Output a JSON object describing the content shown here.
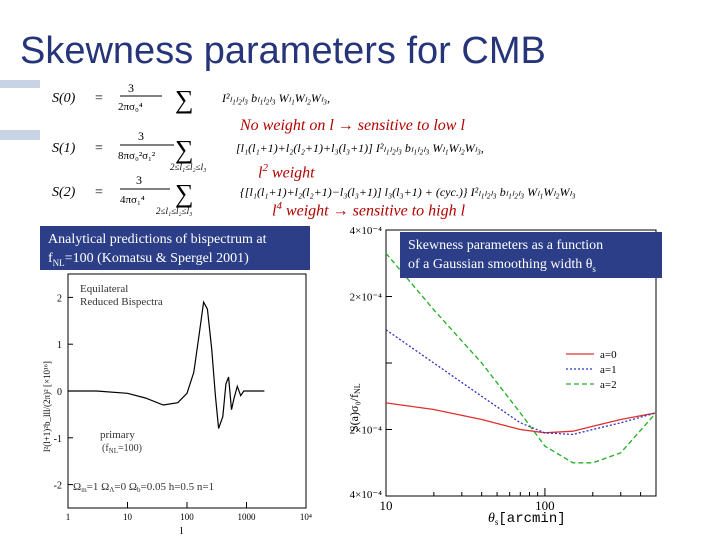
{
  "slide": {
    "title": "Skewness parameters for CMB",
    "colors": {
      "title": "#26357a",
      "annotation": "#b40000",
      "caption_bg": "#2b3e87",
      "a0": "#e03030",
      "a1": "#3030c0",
      "a2": "#20b020"
    }
  },
  "equations": {
    "s0_lhs": "S(0)",
    "s1_lhs": "S(1)",
    "s2_lhs": "S(2)",
    "eq": "=",
    "s0_num": "3",
    "s0_den": "2πσ₀⁴",
    "s1_num": "3",
    "s1_den": "8πσ₀²σ₁²",
    "s2_num": "3",
    "s2_den": "4πσ₁⁴",
    "sum_range": "2≤l₁≤l₂≤l₃",
    "s0_body": "I²ₗ₁ₗ₂ₗ₃ bₗ₁ₗ₂ₗ₃ Wₗ₁Wₗ₂Wₗ₃,",
    "s1_body": "[l₁(l₁+1)+l₂(l₂+1)+l₃(l₃+1)] I²ₗ₁ₗ₂ₗ₃ bₗ₁ₗ₂ₗ₃ Wₗ₁Wₗ₂Wₗ₃,",
    "s2_body": "{[l₁(l₁+1)+l₂(l₂+1)−l₃(l₃+1)] l₃(l₃+1) + (cyc.)} I²ₗ₁ₗ₂ₗ₃ bₗ₁ₗ₂ₗ₃ Wₗ₁Wₗ₂Wₗ₃"
  },
  "annotations": {
    "a1": "No weight on l → sensitive to low l",
    "a2_pre": "l",
    "a2_sup": "2",
    "a2_post": " weight",
    "a3_pre": "l",
    "a3_sup": "4",
    "a3_post": " weight → sensitive to high l"
  },
  "captions": {
    "left_line1": "Analytical predictions of bispectrum at",
    "left_line2": "f",
    "left_sub": "NL",
    "left_line2_rest": "=100 (Komatsu & Spergel 2001)",
    "right_line1": "Skewness parameters as a function",
    "right_line2": "of a Gaussian smoothing width θ",
    "right_sub": "s"
  },
  "left_plot": {
    "legend_line1": "Equilateral",
    "legend_line2": "Reduced Bispectra",
    "curve_label_1": "primary",
    "curve_label_2": "(f",
    "curve_label_2_sub": "NL",
    "curve_label_2_rest": "=100)",
    "ylabel": "l²(l+1)²b_lll/(2π)² [×10¹⁶]",
    "xlabel": "l",
    "y_ticks": [
      "2",
      "1",
      "0",
      "-1",
      "-2"
    ],
    "x_ticks": [
      "1",
      "10",
      "100",
      "1000",
      "10⁴"
    ],
    "params": "Ω",
    "params_m": "m",
    "params_1": "=1  Ω",
    "params_a": "Λ",
    "params_2": "=0  Ω",
    "params_b": "b",
    "params_3": "=0.05  h=0.5  n=1"
  },
  "right_plot": {
    "ylabel": "S(a)σ₀/f",
    "ylabel_sub": "NL",
    "xlabel": "θ",
    "xlabel_sub": "s",
    "xlabel_unit": "[arcmin]",
    "y_ticks": [
      "4×10⁻⁴",
      "2×10⁻⁴",
      "0",
      "−2×10⁻⁴",
      "−4×10⁻⁴"
    ],
    "y_ticks_vis": [
      "4×10⁻⁴",
      "2×10⁻⁴",
      "2×10⁻⁴",
      "4×10⁻⁴"
    ],
    "x_ticks": [
      "10",
      "100"
    ],
    "legend": [
      "a=0",
      "a=1",
      "a=2"
    ]
  },
  "chart_data": [
    {
      "type": "line",
      "title": "Equilateral Reduced Bispectra",
      "xlabel": "l",
      "ylabel": "l²(l+1)²b_lll/(2π)² [×10¹⁶]",
      "xscale": "log",
      "xlim": [
        1,
        10000
      ],
      "ylim": [
        -2.5,
        2.5
      ],
      "series": [
        {
          "name": "primary (fNL=100)",
          "x": [
            1,
            3,
            10,
            20,
            40,
            70,
            100,
            130,
            160,
            190,
            220,
            260,
            300,
            340,
            400,
            450,
            500,
            560,
            620,
            700,
            800,
            900,
            1000,
            1200,
            1500,
            2000
          ],
          "y": [
            0.0,
            0.0,
            -0.05,
            -0.15,
            -0.3,
            -0.25,
            -0.05,
            0.4,
            1.2,
            1.9,
            1.75,
            0.9,
            -0.1,
            -0.8,
            -0.55,
            0.15,
            0.3,
            -0.4,
            -0.15,
            0.1,
            -0.1,
            0.0,
            0.0,
            0.0,
            0.0,
            0.0
          ]
        }
      ]
    },
    {
      "type": "line",
      "title": "",
      "xlabel": "θs [arcmin]",
      "ylabel": "S(a)σ0/fNL",
      "xscale": "log",
      "xlim": [
        10,
        500
      ],
      "ylim": [
        -0.0004,
        0.0004
      ],
      "legend": "center-right",
      "series": [
        {
          "name": "a=0",
          "x": [
            10,
            20,
            40,
            70,
            100,
            150,
            200,
            300,
            500
          ],
          "y": [
            -0.00012,
            -0.00014,
            -0.00017,
            -0.0002,
            -0.00021,
            -0.000205,
            -0.00019,
            -0.00017,
            -0.00015
          ]
        },
        {
          "name": "a=1",
          "x": [
            10,
            20,
            40,
            70,
            100,
            150,
            200,
            300,
            500
          ],
          "y": [
            0.0001,
            0.0,
            -0.0001,
            -0.00018,
            -0.00021,
            -0.000215,
            -0.0002,
            -0.00018,
            -0.00015
          ]
        },
        {
          "name": "a=2",
          "x": [
            10,
            20,
            40,
            70,
            100,
            150,
            200,
            300,
            500
          ],
          "y": [
            0.00033,
            0.00016,
            0.0,
            -0.00015,
            -0.00025,
            -0.0003,
            -0.0003,
            -0.00027,
            -0.00015
          ]
        }
      ]
    }
  ]
}
